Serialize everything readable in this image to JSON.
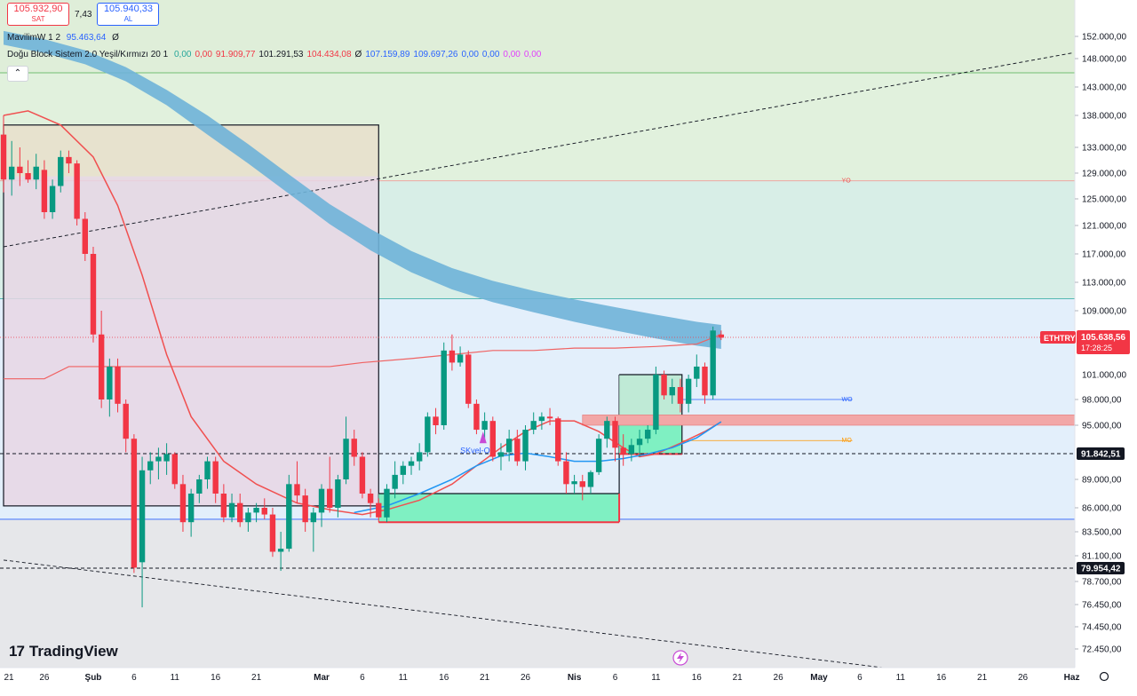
{
  "header": {
    "sell_price": "105.932,90",
    "sell_label": "SAT",
    "spread": "7,43",
    "buy_price": "105.940,33",
    "buy_label": "AL"
  },
  "legend": {
    "ind1_name": "MavilimW 1 2",
    "ind1_value": "95.463,64",
    "ind1_end": "Ø",
    "ind2_name": "Doğu Block Sistem 2.0 Yeşil/Kırmızı 20 1",
    "ind2_values": [
      "0,00",
      "0,00",
      "91.909,77",
      "101.291,53",
      "104.434,08",
      "Ø",
      "107.159,89",
      "109.697,26",
      "0,00",
      "0,00",
      "0,00",
      "0,00"
    ],
    "ind2_colors": [
      "#26a69a",
      "#f23645",
      "#f23645",
      "#131722",
      "#f23645",
      "#131722",
      "#2962ff",
      "#2962ff",
      "#2962ff",
      "#2962ff",
      "#e040fb",
      "#e040fb"
    ],
    "collapse_icon": "chevron-up-icon"
  },
  "branding": {
    "logo_mark": "17",
    "logo_name": "TradingView"
  },
  "chart_data": {
    "type": "candlestick",
    "symbol": "ETHTRY",
    "y_ticks": [
      152000,
      148000,
      143000,
      138000,
      133000,
      129000,
      125000,
      121000,
      117000,
      113000,
      109000,
      98000,
      95000,
      89000,
      86000,
      83500,
      81100,
      78700,
      76450,
      74450,
      72450
    ],
    "y_tick_labels": [
      "152.000,00",
      "148.000,00",
      "143.000,00",
      "138.000,00",
      "133.000,00",
      "129.000,00",
      "125.000,00",
      "121.000,00",
      "117.000,00",
      "113.000,00",
      "109.000,00",
      "98.000,00",
      "95.000,00",
      "89.000,00",
      "86.000,00",
      "83.500,00",
      "81.100,00",
      "78.700,00",
      "76.450,00",
      "74.450,00",
      "72.450,00"
    ],
    "y_label_101": "101.000,00",
    "x_labels": [
      "21",
      "26",
      "Şub",
      "6",
      "11",
      "16",
      "21",
      "Mar",
      "6",
      "11",
      "16",
      "21",
      "26",
      "Nis",
      "6",
      "11",
      "16",
      "21",
      "26",
      "May",
      "6",
      "11",
      "16",
      "21",
      "26",
      "Haz"
    ],
    "x_label_days": [
      0,
      5,
      11,
      16,
      21,
      26,
      31,
      39,
      44,
      49,
      54,
      59,
      64,
      70,
      75,
      80,
      85,
      90,
      95,
      100,
      105,
      110,
      115,
      120,
      125,
      131
    ],
    "price_line": {
      "label": "ETHTRY",
      "value": "105.638,56",
      "countdown": "17:28:25",
      "price": 105638
    },
    "dashed_levels": [
      {
        "price": 91842,
        "label": "91.842,51"
      },
      {
        "price": 79954,
        "label": "79.954,42"
      }
    ],
    "zone_lines": [
      {
        "price": 145500,
        "color": "#4caf50"
      },
      {
        "price": 127800,
        "color": "#ef9a9a"
      },
      {
        "price": 110700,
        "color": "#26a69a"
      },
      {
        "price": 84800,
        "color": "#2962ff"
      }
    ],
    "level_tags": [
      {
        "text": "YO",
        "price": 127800,
        "day": 103,
        "color": "#ef5350"
      },
      {
        "text": "WO",
        "price": 98000,
        "day": 103,
        "color": "#2962ff"
      },
      {
        "text": "MO",
        "price": 93300,
        "day": 103,
        "color": "#ff9800"
      }
    ],
    "signal_label": "SKvel-O",
    "candles": [
      {
        "d": 0,
        "o": 135000,
        "h": 138000,
        "l": 126000,
        "c": 128000
      },
      {
        "d": 1,
        "o": 128000,
        "h": 134000,
        "l": 125500,
        "c": 130000
      },
      {
        "d": 2,
        "o": 130000,
        "h": 133000,
        "l": 127000,
        "c": 129000
      },
      {
        "d": 3,
        "o": 129000,
        "h": 131000,
        "l": 127500,
        "c": 128000
      },
      {
        "d": 4,
        "o": 128000,
        "h": 132000,
        "l": 126500,
        "c": 130000
      },
      {
        "d": 5,
        "o": 129500,
        "h": 131000,
        "l": 122000,
        "c": 123000
      },
      {
        "d": 6,
        "o": 123000,
        "h": 128000,
        "l": 122000,
        "c": 127000
      },
      {
        "d": 7,
        "o": 127000,
        "h": 132500,
        "l": 126000,
        "c": 131500
      },
      {
        "d": 8,
        "o": 131500,
        "h": 132500,
        "l": 129000,
        "c": 130500
      },
      {
        "d": 9,
        "o": 130500,
        "h": 131000,
        "l": 121000,
        "c": 122000
      },
      {
        "d": 10,
        "o": 122000,
        "h": 123000,
        "l": 116000,
        "c": 117000
      },
      {
        "d": 11,
        "o": 117000,
        "h": 118000,
        "l": 105000,
        "c": 106000
      },
      {
        "d": 12,
        "o": 106000,
        "h": 109000,
        "l": 97000,
        "c": 98000
      },
      {
        "d": 13,
        "o": 98000,
        "h": 103000,
        "l": 96000,
        "c": 102000
      },
      {
        "d": 14,
        "o": 102000,
        "h": 103000,
        "l": 96500,
        "c": 97500
      },
      {
        "d": 15,
        "o": 97500,
        "h": 98000,
        "l": 92000,
        "c": 93500
      },
      {
        "d": 16,
        "o": 93500,
        "h": 94000,
        "l": 79500,
        "c": 80000
      },
      {
        "d": 17,
        "o": 80500,
        "h": 91500,
        "l": 76200,
        "c": 90000
      },
      {
        "d": 18,
        "o": 90000,
        "h": 92000,
        "l": 88500,
        "c": 91000
      },
      {
        "d": 19,
        "o": 91000,
        "h": 92500,
        "l": 89000,
        "c": 91500
      },
      {
        "d": 20,
        "o": 91000,
        "h": 93000,
        "l": 89500,
        "c": 91800
      },
      {
        "d": 21,
        "o": 91800,
        "h": 92000,
        "l": 88000,
        "c": 88500
      },
      {
        "d": 22,
        "o": 88500,
        "h": 89500,
        "l": 83500,
        "c": 84500
      },
      {
        "d": 23,
        "o": 84500,
        "h": 88000,
        "l": 83000,
        "c": 87500
      },
      {
        "d": 24,
        "o": 87500,
        "h": 89500,
        "l": 86500,
        "c": 89000
      },
      {
        "d": 25,
        "o": 89000,
        "h": 91500,
        "l": 88000,
        "c": 91000
      },
      {
        "d": 26,
        "o": 91000,
        "h": 91500,
        "l": 86500,
        "c": 87500
      },
      {
        "d": 27,
        "o": 87500,
        "h": 88500,
        "l": 84500,
        "c": 85000
      },
      {
        "d": 28,
        "o": 85000,
        "h": 87500,
        "l": 84500,
        "c": 86500
      },
      {
        "d": 29,
        "o": 86500,
        "h": 87500,
        "l": 84000,
        "c": 84500
      },
      {
        "d": 30,
        "o": 84500,
        "h": 86000,
        "l": 83500,
        "c": 85500
      },
      {
        "d": 31,
        "o": 85500,
        "h": 86500,
        "l": 84500,
        "c": 86000
      },
      {
        "d": 32,
        "o": 86000,
        "h": 87000,
        "l": 84800,
        "c": 85300
      },
      {
        "d": 33,
        "o": 85300,
        "h": 86000,
        "l": 81000,
        "c": 81500
      },
      {
        "d": 34,
        "o": 81500,
        "h": 83500,
        "l": 79700,
        "c": 81800
      },
      {
        "d": 35,
        "o": 81800,
        "h": 89500,
        "l": 81500,
        "c": 88500
      },
      {
        "d": 36,
        "o": 88500,
        "h": 91000,
        "l": 86500,
        "c": 87300
      },
      {
        "d": 37,
        "o": 87300,
        "h": 88000,
        "l": 83500,
        "c": 84500
      },
      {
        "d": 38,
        "o": 84500,
        "h": 86000,
        "l": 81500,
        "c": 85500
      },
      {
        "d": 39,
        "o": 85500,
        "h": 88500,
        "l": 84000,
        "c": 88000
      },
      {
        "d": 40,
        "o": 88000,
        "h": 91500,
        "l": 85500,
        "c": 86000
      },
      {
        "d": 41,
        "o": 86000,
        "h": 89500,
        "l": 85000,
        "c": 89000
      },
      {
        "d": 42,
        "o": 89000,
        "h": 96000,
        "l": 88500,
        "c": 93500
      },
      {
        "d": 43,
        "o": 93500,
        "h": 94500,
        "l": 90500,
        "c": 91500
      },
      {
        "d": 44,
        "o": 91500,
        "h": 92000,
        "l": 87000,
        "c": 87500
      },
      {
        "d": 45,
        "o": 87500,
        "h": 88000,
        "l": 85000,
        "c": 86500
      },
      {
        "d": 46,
        "o": 86500,
        "h": 87000,
        "l": 84500,
        "c": 85000
      },
      {
        "d": 47,
        "o": 85000,
        "h": 88500,
        "l": 84500,
        "c": 88000
      },
      {
        "d": 48,
        "o": 88000,
        "h": 91000,
        "l": 87000,
        "c": 89500
      },
      {
        "d": 49,
        "o": 89500,
        "h": 91000,
        "l": 88500,
        "c": 90500
      },
      {
        "d": 50,
        "o": 90500,
        "h": 91500,
        "l": 89500,
        "c": 91000
      },
      {
        "d": 51,
        "o": 91000,
        "h": 93000,
        "l": 90000,
        "c": 92000
      },
      {
        "d": 52,
        "o": 92000,
        "h": 96500,
        "l": 91500,
        "c": 96000
      },
      {
        "d": 53,
        "o": 96000,
        "h": 97000,
        "l": 94000,
        "c": 95000
      },
      {
        "d": 54,
        "o": 95000,
        "h": 105000,
        "l": 94500,
        "c": 104000
      },
      {
        "d": 55,
        "o": 104000,
        "h": 106000,
        "l": 101500,
        "c": 102500
      },
      {
        "d": 56,
        "o": 102500,
        "h": 104500,
        "l": 102000,
        "c": 103500
      },
      {
        "d": 57,
        "o": 103500,
        "h": 104000,
        "l": 97000,
        "c": 97500
      },
      {
        "d": 58,
        "o": 97500,
        "h": 98000,
        "l": 94000,
        "c": 94500
      },
      {
        "d": 59,
        "o": 94500,
        "h": 96500,
        "l": 93500,
        "c": 95500
      },
      {
        "d": 60,
        "o": 95500,
        "h": 96000,
        "l": 91000,
        "c": 91500
      },
      {
        "d": 61,
        "o": 91500,
        "h": 93000,
        "l": 90000,
        "c": 92000
      },
      {
        "d": 62,
        "o": 92000,
        "h": 94500,
        "l": 91000,
        "c": 93500
      },
      {
        "d": 63,
        "o": 93500,
        "h": 94500,
        "l": 90500,
        "c": 91000
      },
      {
        "d": 64,
        "o": 91000,
        "h": 95000,
        "l": 90000,
        "c": 94500
      },
      {
        "d": 65,
        "o": 94500,
        "h": 96500,
        "l": 94000,
        "c": 95500
      },
      {
        "d": 66,
        "o": 95500,
        "h": 96500,
        "l": 94500,
        "c": 96000
      },
      {
        "d": 67,
        "o": 96000,
        "h": 97000,
        "l": 95000,
        "c": 95800
      },
      {
        "d": 68,
        "o": 95800,
        "h": 96000,
        "l": 90500,
        "c": 91000
      },
      {
        "d": 69,
        "o": 91000,
        "h": 92000,
        "l": 87500,
        "c": 88500
      },
      {
        "d": 70,
        "o": 88500,
        "h": 89500,
        "l": 87500,
        "c": 88800
      },
      {
        "d": 71,
        "o": 88800,
        "h": 89500,
        "l": 86800,
        "c": 88200
      },
      {
        "d": 72,
        "o": 88200,
        "h": 90000,
        "l": 87500,
        "c": 89800
      },
      {
        "d": 73,
        "o": 89800,
        "h": 94000,
        "l": 89500,
        "c": 93500
      },
      {
        "d": 74,
        "o": 93500,
        "h": 96000,
        "l": 92500,
        "c": 95500
      },
      {
        "d": 75,
        "o": 95500,
        "h": 96000,
        "l": 91000,
        "c": 92500
      },
      {
        "d": 76,
        "o": 92500,
        "h": 94000,
        "l": 90500,
        "c": 91800
      },
      {
        "d": 77,
        "o": 91800,
        "h": 93500,
        "l": 91000,
        "c": 92800
      },
      {
        "d": 78,
        "o": 92800,
        "h": 94500,
        "l": 91500,
        "c": 93500
      },
      {
        "d": 79,
        "o": 93500,
        "h": 95000,
        "l": 93000,
        "c": 94500
      },
      {
        "d": 80,
        "o": 94500,
        "h": 102000,
        "l": 94000,
        "c": 101000
      },
      {
        "d": 81,
        "o": 101000,
        "h": 101500,
        "l": 98000,
        "c": 98500
      },
      {
        "d": 82,
        "o": 98500,
        "h": 100500,
        "l": 97500,
        "c": 99500
      },
      {
        "d": 83,
        "o": 99500,
        "h": 100500,
        "l": 96500,
        "c": 97500
      },
      {
        "d": 84,
        "o": 97500,
        "h": 101000,
        "l": 96500,
        "c": 100500
      },
      {
        "d": 85,
        "o": 100500,
        "h": 103500,
        "l": 99500,
        "c": 102000
      },
      {
        "d": 86,
        "o": 102000,
        "h": 102500,
        "l": 97500,
        "c": 98500
      },
      {
        "d": 87,
        "o": 98500,
        "h": 107000,
        "l": 98000,
        "c": 106500
      },
      {
        "d": 88,
        "o": 106000,
        "h": 106500,
        "l": 105300,
        "c": 105600
      }
    ],
    "mavilim_fast": [
      [
        0,
        138000
      ],
      [
        3,
        138800
      ],
      [
        7,
        136500
      ],
      [
        11,
        131500
      ],
      [
        14,
        124000
      ],
      [
        17,
        114000
      ],
      [
        20,
        103500
      ],
      [
        23,
        96000
      ],
      [
        27,
        91000
      ],
      [
        31,
        88500
      ],
      [
        36,
        86500
      ],
      [
        40,
        85800
      ],
      [
        44,
        85300
      ],
      [
        47,
        85800
      ],
      [
        51,
        86800
      ],
      [
        55,
        88500
      ],
      [
        58,
        90500
      ],
      [
        61,
        92500
      ],
      [
        64,
        94300
      ],
      [
        67,
        95500
      ],
      [
        70,
        95500
      ],
      [
        73,
        94300
      ],
      [
        76,
        92500
      ],
      [
        78,
        91500
      ],
      [
        80,
        91800
      ],
      [
        83,
        93000
      ],
      [
        86,
        94300
      ],
      [
        88,
        95400
      ]
    ],
    "mavilim_slow": [
      [
        43,
        85500
      ],
      [
        47,
        86200
      ],
      [
        51,
        87500
      ],
      [
        55,
        89000
      ],
      [
        58,
        90500
      ],
      [
        61,
        91600
      ],
      [
        64,
        91900
      ],
      [
        67,
        91500
      ],
      [
        70,
        91000
      ],
      [
        73,
        91000
      ],
      [
        76,
        91300
      ],
      [
        79,
        91800
      ],
      [
        82,
        92500
      ],
      [
        85,
        93600
      ],
      [
        88,
        95400
      ]
    ],
    "upper_band": [
      [
        0,
        100500
      ],
      [
        5,
        100500
      ],
      [
        8,
        102000
      ],
      [
        14,
        102000
      ],
      [
        20,
        102000
      ],
      [
        40,
        102000
      ],
      [
        44,
        102500
      ],
      [
        50,
        103000
      ],
      [
        55,
        103500
      ],
      [
        60,
        104000
      ],
      [
        65,
        104000
      ],
      [
        70,
        104300
      ],
      [
        75,
        104300
      ],
      [
        80,
        104500
      ],
      [
        85,
        104800
      ],
      [
        88,
        106000
      ]
    ],
    "cloud_top": [
      [
        0,
        153000
      ],
      [
        5,
        151500
      ],
      [
        10,
        149500
      ],
      [
        15,
        146500
      ],
      [
        20,
        142500
      ],
      [
        25,
        138000
      ],
      [
        30,
        133500
      ],
      [
        35,
        128800
      ],
      [
        40,
        124200
      ],
      [
        45,
        120500
      ],
      [
        50,
        117400
      ],
      [
        55,
        115000
      ],
      [
        60,
        113200
      ],
      [
        65,
        111800
      ],
      [
        70,
        110600
      ],
      [
        75,
        109500
      ],
      [
        80,
        108500
      ],
      [
        85,
        107600
      ],
      [
        88,
        107200
      ]
    ],
    "cloud_bottom": [
      [
        0,
        150500
      ],
      [
        5,
        149000
      ],
      [
        10,
        147000
      ],
      [
        15,
        144000
      ],
      [
        20,
        139800
      ],
      [
        25,
        135000
      ],
      [
        30,
        130500
      ],
      [
        35,
        125800
      ],
      [
        40,
        121200
      ],
      [
        45,
        117500
      ],
      [
        50,
        114400
      ],
      [
        55,
        112000
      ],
      [
        60,
        110200
      ],
      [
        65,
        108800
      ],
      [
        70,
        107600
      ],
      [
        75,
        106500
      ],
      [
        80,
        105500
      ],
      [
        85,
        104600
      ],
      [
        88,
        104200
      ]
    ],
    "trend_up": [
      [
        0,
        118000
      ],
      [
        131,
        149000
      ]
    ],
    "trend_down": [
      [
        0,
        80700
      ],
      [
        131,
        68900
      ]
    ]
  }
}
